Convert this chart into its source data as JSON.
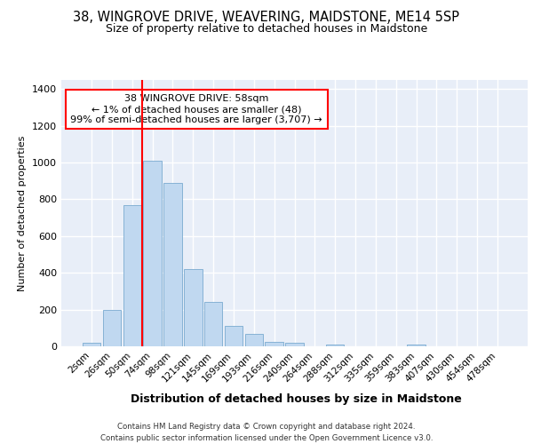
{
  "title": "38, WINGROVE DRIVE, WEAVERING, MAIDSTONE, ME14 5SP",
  "subtitle": "Size of property relative to detached houses in Maidstone",
  "xlabel": "Distribution of detached houses by size in Maidstone",
  "ylabel": "Number of detached properties",
  "categories": [
    "2sqm",
    "26sqm",
    "50sqm",
    "74sqm",
    "98sqm",
    "121sqm",
    "145sqm",
    "169sqm",
    "193sqm",
    "216sqm",
    "240sqm",
    "264sqm",
    "288sqm",
    "312sqm",
    "335sqm",
    "359sqm",
    "383sqm",
    "407sqm",
    "430sqm",
    "454sqm",
    "478sqm"
  ],
  "bar_heights": [
    20,
    200,
    770,
    1010,
    890,
    420,
    240,
    110,
    70,
    25,
    20,
    0,
    10,
    0,
    0,
    0,
    10,
    0,
    0,
    0,
    0
  ],
  "bar_color": "#c0d8f0",
  "bar_edge_color": "#7aaad0",
  "annotation_text": "38 WINGROVE DRIVE: 58sqm\n← 1% of detached houses are smaller (48)\n99% of semi-detached houses are larger (3,707) →",
  "vline_position": 2.5,
  "vline_color": "red",
  "ylim": [
    0,
    1450
  ],
  "yticks": [
    0,
    200,
    400,
    600,
    800,
    1000,
    1200,
    1400
  ],
  "bg_color": "#e8eef8",
  "footer": "Contains HM Land Registry data © Crown copyright and database right 2024.\nContains public sector information licensed under the Open Government Licence v3.0."
}
